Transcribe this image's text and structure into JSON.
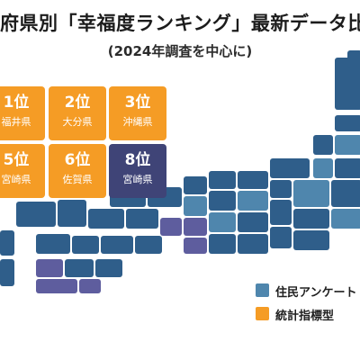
{
  "title": "府県別「幸福度ランキング」最新データ比較",
  "subtitle": "(2024年調査を中心に)",
  "colors": {
    "orange": "#f59c25",
    "navy": "#3f4477",
    "map_blue": "#2f5e8a",
    "map_mid": "#4f86ad",
    "map_light": "#7aa6c6",
    "map_purple": "#5e5d9e"
  },
  "rank_cards": [
    {
      "rank": "1位",
      "pref": "福井県",
      "color": "orange"
    },
    {
      "rank": "2位",
      "pref": "大分県",
      "color": "orange"
    },
    {
      "rank": "3位",
      "pref": "沖縄県",
      "color": "orange"
    },
    {
      "rank": "5位",
      "pref": "宮崎県",
      "color": "orange"
    },
    {
      "rank": "6位",
      "pref": "佐賀県",
      "color": "orange"
    },
    {
      "rank": "8位",
      "pref": "宮崎県",
      "color": "navy"
    }
  ],
  "legend": [
    {
      "label": "住民アンケート",
      "color": "#4f86ad"
    },
    {
      "label": "統計指標型",
      "color": "#f59c25"
    }
  ]
}
